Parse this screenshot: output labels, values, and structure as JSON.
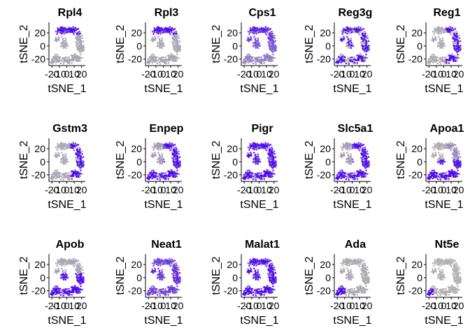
{
  "chart_data": {
    "type": "scatter",
    "layout": {
      "rows": 3,
      "cols": 5
    },
    "xlabel": "tSNE_1",
    "ylabel": "tSNE_2",
    "xticks": [
      -20,
      -10,
      0,
      10,
      20
    ],
    "yticks": [
      20,
      0,
      -20
    ],
    "xlim": [
      -24,
      25
    ],
    "ylim": [
      -30,
      36
    ],
    "color_low": "#B3B3B3",
    "color_high": "#4B00F5",
    "panels": [
      {
        "title": "Rpl4",
        "pattern": "top"
      },
      {
        "title": "Rpl3",
        "pattern": "top"
      },
      {
        "title": "Cps1",
        "pattern": "upper-half"
      },
      {
        "title": "Reg3g",
        "pattern": "sparse"
      },
      {
        "title": "Reg1",
        "pattern": "sparse-right"
      },
      {
        "title": "Gstm3",
        "pattern": "right-sparse"
      },
      {
        "title": "Enpep",
        "pattern": "right-bottom"
      },
      {
        "title": "Pigr",
        "pattern": "broad"
      },
      {
        "title": "Slc5a1",
        "pattern": "right-bottom"
      },
      {
        "title": "Apoa1",
        "pattern": "bottom-left"
      },
      {
        "title": "Apob",
        "pattern": "bottom"
      },
      {
        "title": "Neat1",
        "pattern": "broad-mid"
      },
      {
        "title": "Malat1",
        "pattern": "broad"
      },
      {
        "title": "Ada",
        "pattern": "far-left"
      },
      {
        "title": "Nt5e",
        "pattern": "far-left-low"
      }
    ]
  }
}
